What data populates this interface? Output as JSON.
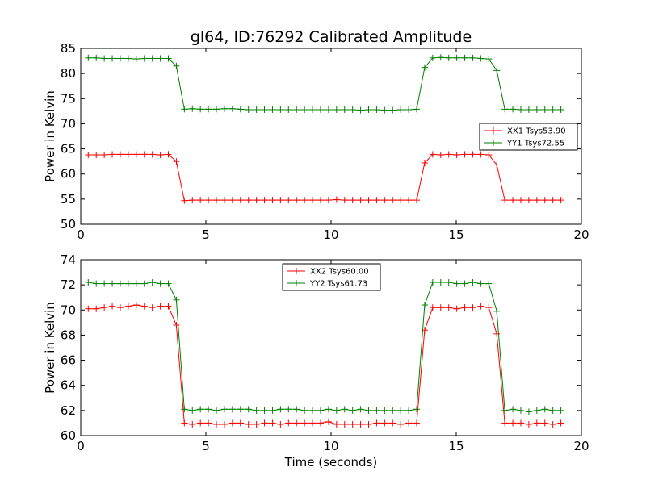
{
  "chart_data": [
    {
      "type": "line",
      "title": "gl64, ID:76292 Calibrated Amplitude",
      "xlabel": "",
      "ylabel": "Power in Kelvin",
      "xlim": [
        0,
        20
      ],
      "ylim": [
        50,
        85
      ],
      "xticks": [
        0,
        5,
        10,
        15,
        20
      ],
      "yticks": [
        50,
        55,
        60,
        65,
        70,
        75,
        80,
        85
      ],
      "x": [
        0.3,
        0.62,
        0.94,
        1.26,
        1.58,
        1.9,
        2.22,
        2.54,
        2.86,
        3.18,
        3.5,
        3.82,
        4.14,
        4.46,
        4.78,
        5.1,
        5.42,
        5.74,
        6.06,
        6.38,
        6.7,
        7.02,
        7.34,
        7.66,
        7.98,
        8.3,
        8.62,
        8.94,
        9.26,
        9.58,
        9.9,
        10.22,
        10.54,
        10.86,
        11.18,
        11.5,
        11.82,
        12.14,
        12.46,
        12.78,
        13.1,
        13.42,
        13.74,
        14.06,
        14.38,
        14.7,
        15.02,
        15.34,
        15.66,
        15.98,
        16.3,
        16.62,
        16.94,
        17.26,
        17.58,
        17.9,
        18.22,
        18.54,
        18.86,
        19.18
      ],
      "legend_position": "center-right",
      "series": [
        {
          "name": "XX1 Tsys53.90",
          "color": "#ff0000",
          "values": [
            63.8,
            63.8,
            63.8,
            63.9,
            63.9,
            63.9,
            63.9,
            63.9,
            63.9,
            63.8,
            63.9,
            62.5,
            54.7,
            54.8,
            54.8,
            54.8,
            54.8,
            54.8,
            54.8,
            54.8,
            54.8,
            54.8,
            54.8,
            54.8,
            54.8,
            54.8,
            54.8,
            54.8,
            54.8,
            54.8,
            54.8,
            54.9,
            54.8,
            54.8,
            54.8,
            54.8,
            54.8,
            54.8,
            54.8,
            54.8,
            54.8,
            54.8,
            62.2,
            63.9,
            63.8,
            63.9,
            63.8,
            63.9,
            63.9,
            63.9,
            63.8,
            61.8,
            54.8,
            54.8,
            54.8,
            54.8,
            54.8,
            54.8,
            54.8,
            54.8
          ]
        },
        {
          "name": "YY1 Tsys72.55",
          "color": "#008000",
          "values": [
            83.1,
            83.1,
            83.0,
            83.0,
            83.0,
            83.0,
            82.9,
            83.0,
            83.0,
            83.0,
            83.0,
            81.5,
            72.9,
            73.0,
            72.9,
            72.9,
            72.9,
            73.0,
            73.0,
            72.9,
            72.8,
            72.8,
            72.8,
            72.8,
            72.8,
            72.8,
            72.8,
            72.8,
            72.8,
            72.8,
            72.8,
            72.8,
            72.8,
            72.8,
            72.7,
            72.8,
            72.8,
            72.7,
            72.7,
            72.8,
            72.8,
            72.9,
            81.2,
            83.1,
            83.2,
            83.1,
            83.1,
            83.1,
            83.1,
            83.0,
            82.9,
            80.6,
            72.9,
            72.9,
            72.8,
            72.8,
            72.8,
            72.8,
            72.8,
            72.8
          ]
        }
      ]
    },
    {
      "type": "line",
      "title": "",
      "xlabel": "Time (seconds)",
      "ylabel": "Power in Kelvin",
      "xlim": [
        0,
        20
      ],
      "ylim": [
        60,
        74
      ],
      "xticks": [
        0,
        5,
        10,
        15,
        20
      ],
      "yticks": [
        60,
        62,
        64,
        66,
        68,
        70,
        72,
        74
      ],
      "x": [
        0.3,
        0.62,
        0.94,
        1.26,
        1.58,
        1.9,
        2.22,
        2.54,
        2.86,
        3.18,
        3.5,
        3.82,
        4.14,
        4.46,
        4.78,
        5.1,
        5.42,
        5.74,
        6.06,
        6.38,
        6.7,
        7.02,
        7.34,
        7.66,
        7.98,
        8.3,
        8.62,
        8.94,
        9.26,
        9.58,
        9.9,
        10.22,
        10.54,
        10.86,
        11.18,
        11.5,
        11.82,
        12.14,
        12.46,
        12.78,
        13.1,
        13.42,
        13.74,
        14.06,
        14.38,
        14.7,
        15.02,
        15.34,
        15.66,
        15.98,
        16.3,
        16.62,
        16.94,
        17.26,
        17.58,
        17.9,
        18.22,
        18.54,
        18.86,
        19.18
      ],
      "legend_position": "upper-center",
      "series": [
        {
          "name": "XX2 Tsys60.00",
          "color": "#ff0000",
          "values": [
            70.1,
            70.1,
            70.2,
            70.3,
            70.2,
            70.3,
            70.4,
            70.3,
            70.2,
            70.3,
            70.3,
            68.8,
            61.0,
            60.9,
            61.0,
            61.0,
            60.9,
            60.9,
            61.0,
            61.0,
            60.9,
            60.9,
            61.0,
            61.0,
            60.9,
            61.0,
            61.0,
            61.0,
            61.0,
            61.0,
            61.1,
            60.9,
            60.9,
            60.9,
            60.9,
            60.9,
            61.0,
            61.0,
            61.0,
            60.9,
            61.0,
            61.0,
            68.4,
            70.2,
            70.2,
            70.2,
            70.1,
            70.2,
            70.2,
            70.3,
            70.2,
            68.1,
            61.0,
            61.0,
            61.0,
            60.9,
            61.0,
            61.0,
            60.9,
            61.0
          ]
        },
        {
          "name": "YY2 Tsys61.73",
          "color": "#008000",
          "values": [
            72.2,
            72.1,
            72.1,
            72.1,
            72.1,
            72.1,
            72.1,
            72.1,
            72.2,
            72.1,
            72.1,
            70.8,
            62.1,
            62.0,
            62.1,
            62.1,
            62.0,
            62.1,
            62.1,
            62.1,
            62.1,
            62.0,
            62.0,
            62.0,
            62.1,
            62.1,
            62.1,
            62.0,
            62.0,
            62.0,
            62.1,
            62.0,
            62.1,
            62.0,
            62.1,
            62.0,
            62.0,
            62.0,
            62.0,
            62.0,
            62.0,
            62.1,
            70.4,
            72.2,
            72.2,
            72.2,
            72.1,
            72.1,
            72.2,
            72.1,
            72.1,
            69.9,
            62.0,
            62.1,
            62.0,
            61.9,
            62.0,
            62.1,
            62.0,
            62.0
          ]
        }
      ]
    }
  ]
}
